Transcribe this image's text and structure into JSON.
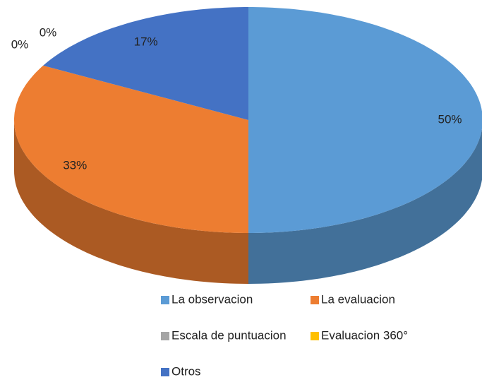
{
  "chart_data": {
    "type": "pie",
    "categories": [
      "La observacion",
      "La evaluacion",
      "Escala de puntuacion",
      "Evaluacion 360°",
      "Otros"
    ],
    "values": [
      50,
      33,
      0,
      0,
      17
    ],
    "value_labels": [
      "50%",
      "33%",
      "0%",
      "0%",
      "17%"
    ],
    "colors": [
      "#5b9bd5",
      "#ed7d31",
      "#a5a5a5",
      "#ffc000",
      "#4472c4"
    ],
    "legend": "bottom"
  }
}
